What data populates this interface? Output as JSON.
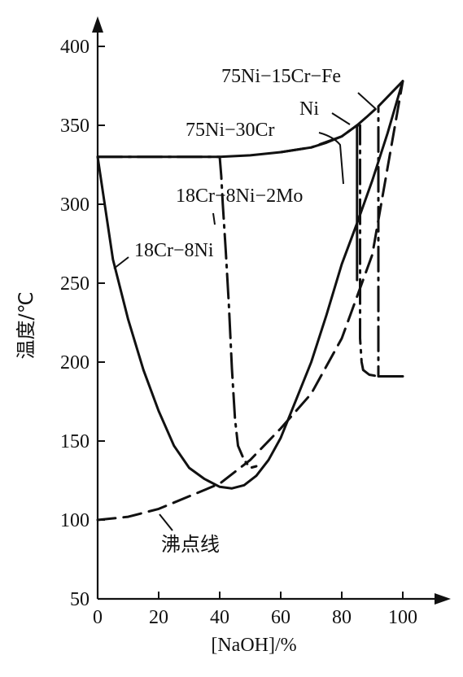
{
  "chart_data": {
    "type": "line",
    "xlabel": "[NaOH]/%",
    "ylabel": "温度/℃",
    "xlim": [
      0,
      110
    ],
    "ylim": [
      50,
      400
    ],
    "x_ticks": [
      0,
      20,
      40,
      60,
      80,
      100
    ],
    "y_ticks": [
      50,
      100,
      150,
      200,
      250,
      300,
      350,
      400
    ],
    "x_tick_labels": [
      "0",
      "20",
      "40",
      "60",
      "80",
      100
    ],
    "y_tick_labels": [
      "50",
      "100",
      "150",
      "200",
      "250",
      "300",
      "350",
      "400"
    ],
    "grid": false,
    "legend": "none",
    "series": [
      {
        "name": "18Cr−8Ni",
        "style": "solid",
        "x": [
          0,
          5,
          10,
          15,
          20,
          25,
          30,
          35,
          40,
          44,
          48,
          52,
          56,
          60,
          65,
          70,
          75,
          80,
          85,
          90,
          95,
          100
        ],
        "y": [
          330,
          265,
          227,
          195,
          169,
          147,
          133,
          126,
          121,
          120,
          122,
          128,
          138,
          152,
          176,
          200,
          230,
          262,
          288,
          315,
          345,
          378
        ]
      },
      {
        "name": "18Cr−8Ni−2Mo",
        "style": "dash-dot",
        "x": [
          0,
          20,
          30,
          40,
          40.5,
          41,
          42,
          43,
          44,
          45,
          46,
          48,
          50,
          52
        ],
        "y": [
          330,
          330,
          330,
          330,
          318,
          300,
          270,
          236,
          196,
          164,
          147,
          138,
          133,
          134
        ]
      },
      {
        "name": "75Ni−30Cr",
        "style": "solid",
        "x": [
          0,
          20,
          40,
          50,
          60,
          70,
          75,
          80,
          85,
          85,
          85
        ],
        "y": [
          330,
          330,
          330,
          331,
          333,
          336,
          339,
          343,
          350,
          280,
          252
        ]
      },
      {
        "name": "Ni",
        "style": "dash-dot",
        "x": [
          60,
          70,
          80,
          85,
          86,
          86,
          86.5,
          87,
          89,
          92,
          100
        ],
        "y": [
          333,
          336,
          343,
          350,
          350,
          215,
          200,
          195,
          192,
          191,
          191
        ]
      },
      {
        "name": "75Ni−15Cr−Fe",
        "style": "dash-dot",
        "x": [
          85,
          88,
          92,
          96,
          100,
          100,
          92,
          92,
          92,
          95,
          98
        ],
        "y": [
          350,
          355,
          362,
          370,
          378,
          378,
          362,
          250,
          191,
          191,
          191
        ]
      },
      {
        "name": "沸点线",
        "style": "dashed",
        "x": [
          0,
          10,
          20,
          30,
          40,
          50,
          60,
          70,
          80,
          90,
          100
        ],
        "y": [
          100,
          102,
          107,
          115,
          123,
          138,
          158,
          180,
          215,
          268,
          378
        ]
      }
    ],
    "annotations": [
      {
        "text": "75Ni−15Cr−Fe",
        "target_series": "75Ni−15Cr−Fe"
      },
      {
        "text": "Ni",
        "target_series": "Ni"
      },
      {
        "text": "75Ni−30Cr",
        "target_series": "75Ni−30Cr"
      },
      {
        "text": "18Cr−8Ni−2Mo",
        "target_series": "18Cr−8Ni−2Mo"
      },
      {
        "text": "18Cr−8Ni",
        "target_series": "18Cr−8Ni"
      },
      {
        "text": "沸点线",
        "target_series": "沸点线"
      }
    ]
  }
}
